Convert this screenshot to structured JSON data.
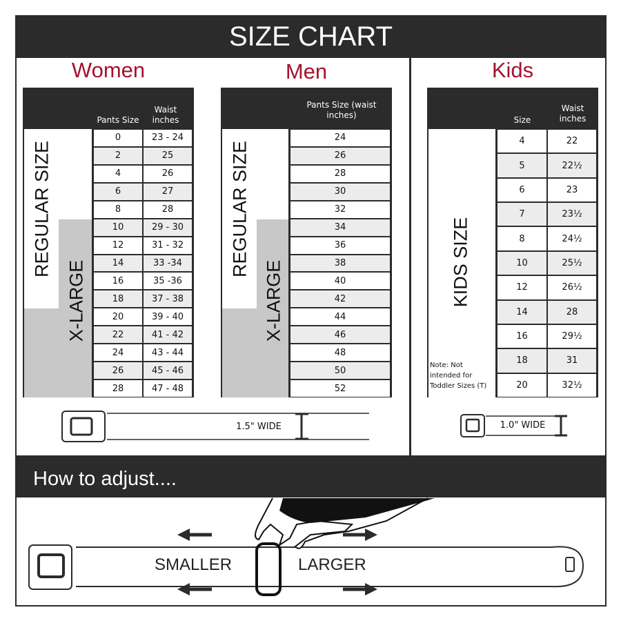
{
  "title": "SIZE CHART",
  "colors": {
    "dark": "#2b2b2b",
    "accent": "#a5122f",
    "grey": "#c8c8c8"
  },
  "women": {
    "heading": "Women",
    "col1": "Pants Size",
    "col2": "Waist inches",
    "regular_label": "REGULAR SIZE",
    "xl_label": "X-LARGE",
    "rows": [
      [
        "0",
        "23 - 24"
      ],
      [
        "2",
        "25"
      ],
      [
        "4",
        "26"
      ],
      [
        "6",
        "27"
      ],
      [
        "8",
        "28"
      ],
      [
        "10",
        "29 - 30"
      ],
      [
        "12",
        "31 - 32"
      ],
      [
        "14",
        "33 -34"
      ],
      [
        "16",
        "35 -36"
      ],
      [
        "18",
        "37 - 38"
      ],
      [
        "20",
        "39 - 40"
      ],
      [
        "22",
        "41 - 42"
      ],
      [
        "24",
        "43 - 44"
      ],
      [
        "26",
        "45 - 46"
      ],
      [
        "28",
        "47 - 48"
      ]
    ]
  },
  "men": {
    "heading": "Men",
    "col1": "Pants Size (waist inches)",
    "regular_label": "REGULAR SIZE",
    "xl_label": "X-LARGE",
    "rows": [
      "24",
      "26",
      "28",
      "30",
      "32",
      "34",
      "36",
      "38",
      "40",
      "42",
      "44",
      "46",
      "48",
      "50",
      "52"
    ]
  },
  "kids": {
    "heading": "Kids",
    "col1": "Size",
    "col2": "Waist inches",
    "side_label": "KIDS SIZE",
    "note": "Note: Not intended for Toddler Sizes (T)",
    "rows": [
      [
        "4",
        "22"
      ],
      [
        "5",
        "22½"
      ],
      [
        "6",
        "23"
      ],
      [
        "7",
        "23½"
      ],
      [
        "8",
        "24½"
      ],
      [
        "10",
        "25½"
      ],
      [
        "12",
        "26½"
      ],
      [
        "14",
        "28"
      ],
      [
        "16",
        "29½"
      ],
      [
        "18",
        "31"
      ],
      [
        "20",
        "32½"
      ]
    ]
  },
  "adult_belt_width": "1.5\" WIDE",
  "kids_belt_width": "1.0\" WIDE",
  "adjust": {
    "heading": "How to adjust....",
    "smaller": "SMALLER",
    "larger": "LARGER"
  }
}
